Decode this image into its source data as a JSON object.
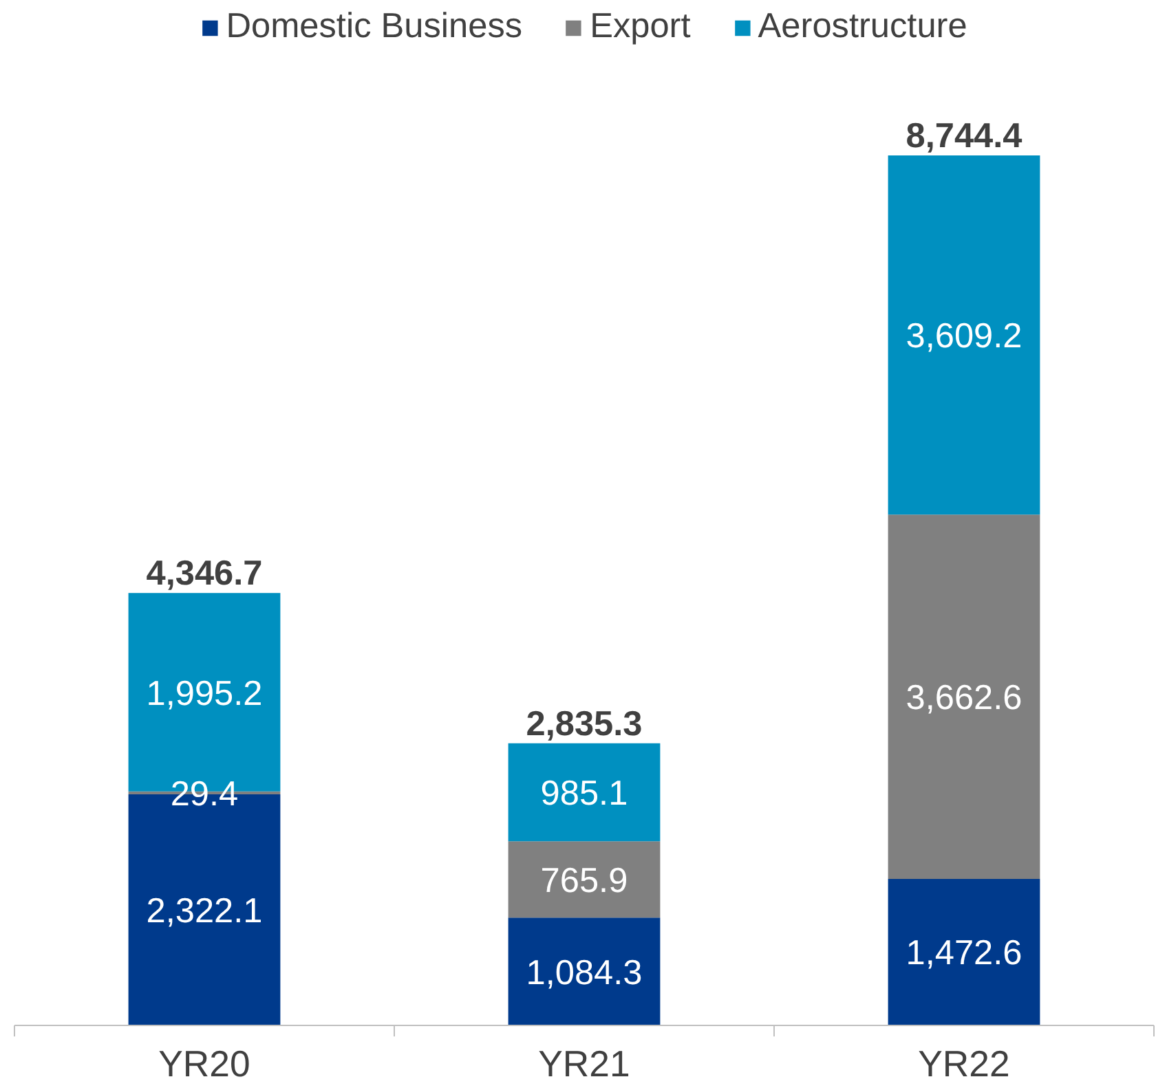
{
  "chart_data": {
    "type": "bar",
    "stacked": true,
    "categories": [
      "YR20",
      "YR21",
      "YR22"
    ],
    "series": [
      {
        "name": "Domestic Business",
        "color": "#003a8c",
        "values": [
          2322.1,
          1084.3,
          1472.6
        ],
        "value_labels": [
          "2,322.1",
          "1,084.3",
          "1,472.6"
        ]
      },
      {
        "name": "Export",
        "color": "#808080",
        "values": [
          29.4,
          765.9,
          3662.6
        ],
        "value_labels": [
          "29.4",
          "765.9",
          "3,662.6"
        ]
      },
      {
        "name": "Aerostructure",
        "color": "#0090c0",
        "values": [
          1995.2,
          985.1,
          3609.2
        ],
        "value_labels": [
          "1,995.2",
          "985.1",
          "3,609.2"
        ]
      }
    ],
    "totals": [
      "4,346.7",
      "2,835.3",
      "8,744.4"
    ],
    "legend": "top",
    "grid": false
  }
}
